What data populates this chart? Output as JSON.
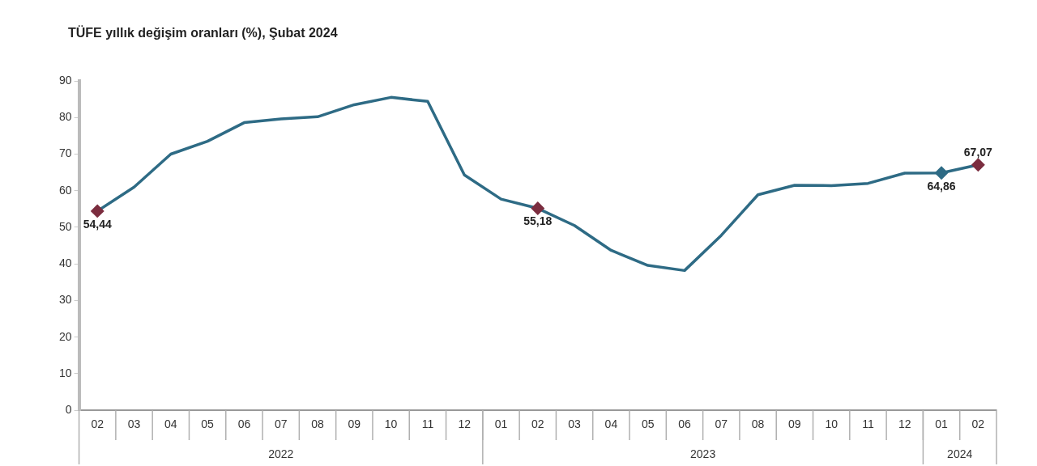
{
  "chart_data": {
    "type": "line",
    "title": "TÜFE yıllık değişim oranları (%), Şubat 2024",
    "categories": [
      "02",
      "03",
      "04",
      "05",
      "06",
      "07",
      "08",
      "09",
      "10",
      "11",
      "12",
      "01",
      "02",
      "03",
      "04",
      "05",
      "06",
      "07",
      "08",
      "09",
      "10",
      "11",
      "12",
      "01",
      "02"
    ],
    "series": [
      {
        "color": "#2e6b85",
        "colors": [
          "#7b2d3f",
          null,
          null,
          null,
          null,
          null,
          null,
          null,
          null,
          null,
          null,
          null,
          "#7b2d3f",
          null,
          null,
          null,
          null,
          null,
          null,
          null,
          null,
          null,
          null,
          "#2e6b85",
          "#7b2d3f"
        ],
        "values": [
          54.44,
          61,
          70,
          73.5,
          78.6,
          79.6,
          80.2,
          83.5,
          85.5,
          84.4,
          64.3,
          57.7,
          55.18,
          50.5,
          43.7,
          39.6,
          38.2,
          47.8,
          58.9,
          61.5,
          61.4,
          62,
          64.8,
          64.86,
          67.07
        ],
        "value_labels": [
          "54,44",
          null,
          null,
          null,
          null,
          null,
          null,
          null,
          null,
          null,
          null,
          null,
          "55,18",
          null,
          null,
          null,
          null,
          null,
          null,
          null,
          null,
          null,
          null,
          "64,86",
          "67,07"
        ]
      }
    ],
    "annotations": [
      "2022",
      "2023",
      "2024"
    ],
    "ylim": [
      0,
      90
    ],
    "yticks": [
      0,
      10,
      20,
      30,
      40,
      50,
      60,
      70,
      80,
      90
    ],
    "line_style": "solid",
    "legend": false,
    "grid": false
  }
}
